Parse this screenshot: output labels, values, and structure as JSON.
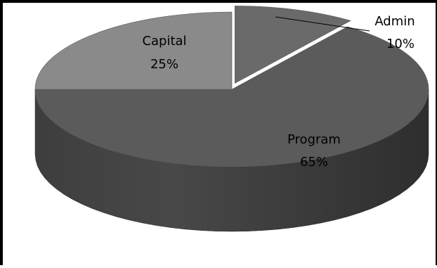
{
  "chart_data": {
    "type": "pie",
    "title": "",
    "categories": [
      "Admin",
      "Program",
      "Capital"
    ],
    "values": [
      10,
      65,
      25
    ],
    "value_labels": [
      "10%",
      "65%",
      "25%"
    ],
    "colors": {
      "Admin": "#6a6a6a",
      "Program": "#5b5b5b",
      "Capital": "#8a8a8a"
    },
    "style": "3d",
    "legend": "none",
    "admin_pulled_out": true
  }
}
